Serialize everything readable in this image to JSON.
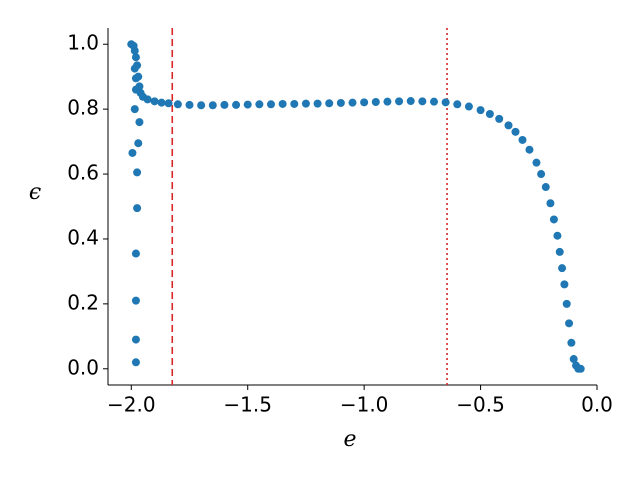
{
  "chart_data": {
    "type": "scatter",
    "x_label": "e",
    "y_label": "ϵ",
    "xlim": [
      -2.1,
      0.0
    ],
    "ylim": [
      -0.05,
      1.05
    ],
    "xticks": [
      {
        "value": -2.0,
        "label": "−2.0"
      },
      {
        "value": -1.5,
        "label": "−1.5"
      },
      {
        "value": -1.0,
        "label": "−1.0"
      },
      {
        "value": -0.5,
        "label": "−0.5"
      },
      {
        "value": 0.0,
        "label": "0.0"
      }
    ],
    "yticks": [
      {
        "value": 0.0,
        "label": "0.0"
      },
      {
        "value": 0.2,
        "label": "0.2"
      },
      {
        "value": 0.4,
        "label": "0.4"
      },
      {
        "value": 0.6,
        "label": "0.6"
      },
      {
        "value": 0.8,
        "label": "0.8"
      },
      {
        "value": 1.0,
        "label": "1.0"
      }
    ],
    "grid": false,
    "vlines": [
      {
        "x": -1.824,
        "color": "#d62728",
        "style": "dashed"
      },
      {
        "x": -0.644,
        "color": "#d62728",
        "style": "dotted"
      }
    ],
    "series": [
      {
        "color": "#1f77b4",
        "x": [
          -1.98,
          -1.98,
          -1.98,
          -1.98,
          -1.975,
          -1.975,
          -1.97,
          -1.965,
          -1.995,
          -1.985,
          -1.98,
          -1.98,
          -1.985,
          -2.0,
          -1.99,
          -1.985,
          -1.98,
          -1.975,
          -1.97,
          -1.965,
          -1.96,
          -1.95,
          -1.93,
          -1.9,
          -1.87,
          -1.84,
          -1.8,
          -1.75,
          -1.7,
          -1.65,
          -1.6,
          -1.55,
          -1.5,
          -1.45,
          -1.4,
          -1.35,
          -1.3,
          -1.25,
          -1.2,
          -1.15,
          -1.1,
          -1.05,
          -1.0,
          -0.95,
          -0.9,
          -0.85,
          -0.8,
          -0.75,
          -0.7,
          -0.65,
          -0.6,
          -0.55,
          -0.5,
          -0.46,
          -0.42,
          -0.38,
          -0.35,
          -0.32,
          -0.29,
          -0.26,
          -0.24,
          -0.22,
          -0.2,
          -0.185,
          -0.17,
          -0.16,
          -0.15,
          -0.14,
          -0.13,
          -0.12,
          -0.11,
          -0.1,
          -0.09,
          -0.08,
          -0.07
        ],
        "values": [
          0.02,
          0.09,
          0.21,
          0.355,
          0.495,
          0.605,
          0.695,
          0.76,
          0.665,
          0.8,
          0.86,
          0.895,
          0.925,
          1.0,
          0.995,
          0.98,
          0.96,
          0.935,
          0.9,
          0.87,
          0.85,
          0.838,
          0.83,
          0.824,
          0.82,
          0.818,
          0.815,
          0.813,
          0.812,
          0.812,
          0.813,
          0.813,
          0.814,
          0.815,
          0.815,
          0.816,
          0.816,
          0.817,
          0.817,
          0.818,
          0.819,
          0.82,
          0.821,
          0.822,
          0.823,
          0.824,
          0.825,
          0.824,
          0.823,
          0.821,
          0.815,
          0.808,
          0.797,
          0.785,
          0.77,
          0.75,
          0.73,
          0.705,
          0.675,
          0.635,
          0.6,
          0.56,
          0.51,
          0.46,
          0.41,
          0.36,
          0.31,
          0.26,
          0.2,
          0.14,
          0.08,
          0.03,
          0.01,
          0.0,
          0.0
        ]
      }
    ]
  }
}
